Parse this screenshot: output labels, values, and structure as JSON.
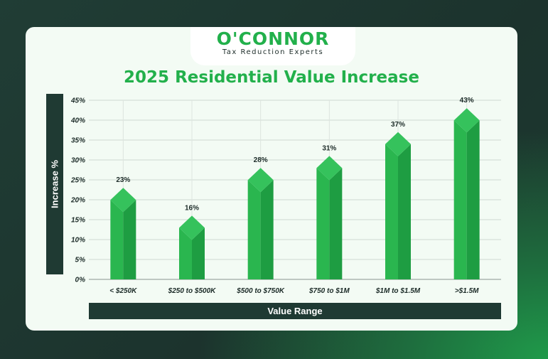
{
  "brand": {
    "name": "O'CONNOR",
    "tagline": "Tax Reduction Experts"
  },
  "colors": {
    "accent": "#22b04b",
    "dark": "#1f3a33"
  },
  "chart_data": {
    "type": "bar",
    "title": "2025 Residential Value Increase",
    "xlabel": "Value Range",
    "ylabel": "Increase %",
    "categories": [
      "< $250K",
      "$250 to $500K",
      "$500 to $750K",
      "$750 to $1M",
      "$1M to $1.5M",
      ">$1.5M"
    ],
    "values": [
      23,
      16,
      28,
      31,
      37,
      43
    ],
    "data_labels": [
      "23%",
      "16%",
      "28%",
      "31%",
      "37%",
      "43%"
    ],
    "yticks": [
      "0%",
      "5%",
      "10%",
      "15%",
      "20%",
      "25%",
      "30%",
      "35%",
      "40%",
      "45%"
    ],
    "ylim": [
      0,
      45
    ],
    "grid": true
  }
}
